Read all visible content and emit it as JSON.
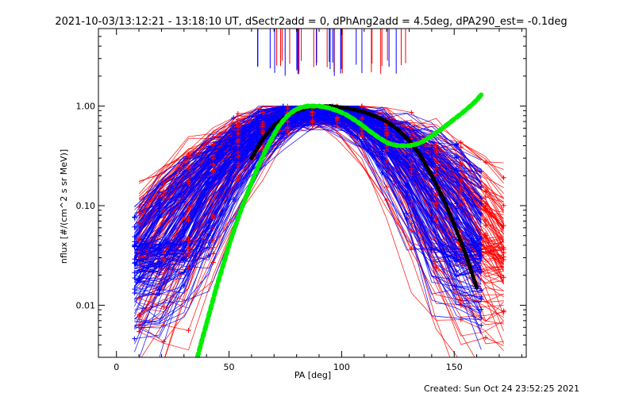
{
  "chart_data": {
    "type": "line",
    "title": "2021-10-03/13:12:21 - 13:18:10 UT, dSectr2add = 0, dPhAng2add = 4.5deg, dPA290_est= -0.1deg",
    "xlabel": "PA [deg]",
    "ylabel": "nflux [#/(cm^2 s sr MeV)]",
    "xlim": [
      -8,
      182
    ],
    "ylim": [
      0.003,
      6.0
    ],
    "yscale": "log",
    "x_ticks": [
      0,
      50,
      100,
      150
    ],
    "x_tick_labels": [
      "0",
      "50",
      "100",
      "150"
    ],
    "y_ticks": [
      0.01,
      0.1,
      1.0
    ],
    "y_tick_labels": [
      "0.01",
      "0.10",
      "1.00"
    ],
    "grid": false,
    "legend": "none",
    "colors": {
      "blue_traces": "#0000ff",
      "red_traces": "#ff0000",
      "black_fit": "#000000",
      "green_fit": "#00ee00"
    },
    "series": [
      {
        "color": "#000000",
        "x": [
          60,
          65,
          70,
          75,
          80,
          85,
          90,
          95,
          100,
          105,
          110,
          115,
          120,
          125,
          130,
          135,
          140,
          145,
          150,
          155,
          160
        ],
        "y": [
          0.3,
          0.47,
          0.64,
          0.78,
          0.89,
          0.96,
          0.99,
          1.0,
          0.97,
          0.93,
          0.87,
          0.79,
          0.7,
          0.58,
          0.45,
          0.32,
          0.2,
          0.12,
          0.065,
          0.033,
          0.015
        ]
      },
      {
        "color": "#00ee00",
        "x": [
          36,
          38,
          40,
          42,
          44,
          46,
          48,
          50,
          52,
          54,
          56,
          58,
          60,
          62,
          64,
          66,
          68,
          70,
          72,
          74,
          76,
          78,
          80,
          82,
          84,
          86,
          88,
          90,
          92,
          94,
          96,
          98,
          100,
          102,
          104,
          106,
          108,
          110,
          112,
          114,
          116,
          118,
          120,
          122,
          124,
          126,
          128,
          130,
          132,
          134,
          136,
          138,
          140,
          142,
          144,
          146,
          148,
          150,
          152,
          154,
          156,
          158,
          160,
          162
        ],
        "y": [
          0.003,
          0.0045,
          0.0065,
          0.0095,
          0.014,
          0.02,
          0.028,
          0.04,
          0.055,
          0.075,
          0.1,
          0.13,
          0.17,
          0.22,
          0.28,
          0.35,
          0.43,
          0.52,
          0.62,
          0.71,
          0.8,
          0.87,
          0.93,
          0.97,
          0.99,
          1.0,
          1.0,
          1.0,
          0.98,
          0.96,
          0.93,
          0.9,
          0.86,
          0.82,
          0.77,
          0.72,
          0.67,
          0.62,
          0.57,
          0.53,
          0.49,
          0.46,
          0.43,
          0.415,
          0.405,
          0.4,
          0.4,
          0.4,
          0.41,
          0.42,
          0.44,
          0.47,
          0.5,
          0.54,
          0.58,
          0.63,
          0.68,
          0.74,
          0.8,
          0.87,
          0.95,
          1.04,
          1.15,
          1.3
        ]
      }
    ]
  },
  "footer": {
    "created": "Created: Sun Oct 24 23:52:25 2021"
  }
}
